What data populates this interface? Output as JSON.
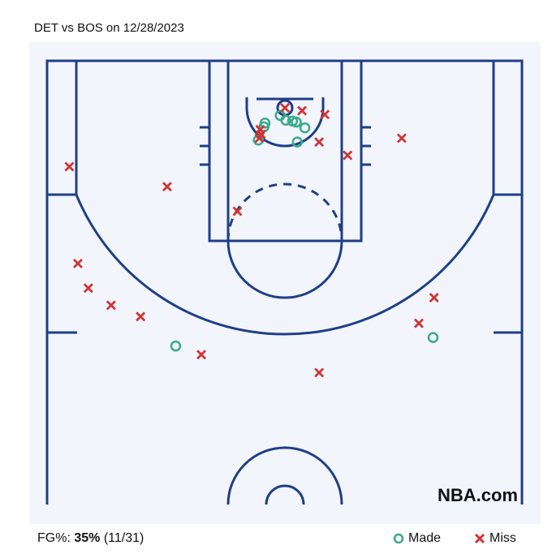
{
  "title": "DET vs BOS on 12/28/2023",
  "watermark": "NBA.com",
  "footer": {
    "fg_label": "FG%:",
    "fg_pct": "35%",
    "fg_count": "(11/31)"
  },
  "legend": [
    {
      "label": "Made",
      "marker": "circle-icon",
      "color": "#3aaa8a"
    },
    {
      "label": "Miss",
      "marker": "x-icon",
      "color": "#d03434"
    }
  ],
  "colors": {
    "court_bg": "#f2f5fc",
    "court_lines": "#1e3f87"
  },
  "chart_data": {
    "type": "scatter",
    "title": "DET vs BOS on 12/28/2023",
    "units": "feet from basket (x: lateral, y: toward half court)",
    "xlim": [
      -25,
      25
    ],
    "ylim": [
      -5,
      42
    ],
    "series": [
      {
        "name": "Made",
        "points": [
          [
            -2.1,
            1.6
          ],
          [
            -2.2,
            2.0
          ],
          [
            -2.8,
            3.4
          ],
          [
            -0.5,
            0.8
          ],
          [
            0.1,
            1.3
          ],
          [
            0.8,
            1.4
          ],
          [
            1.2,
            1.5
          ],
          [
            2.1,
            2.1
          ],
          [
            1.3,
            3.6
          ],
          [
            -11.5,
            25.1
          ],
          [
            15.6,
            24.2
          ]
        ]
      },
      {
        "name": "Miss",
        "points": [
          [
            0,
            0
          ],
          [
            1.8,
            0.3
          ],
          [
            4.2,
            0.7
          ],
          [
            -2.6,
            2.3
          ],
          [
            -2.5,
            2.8
          ],
          [
            -2.7,
            3.2
          ],
          [
            3.6,
            3.6
          ],
          [
            6.6,
            5.0
          ],
          [
            12.3,
            3.2
          ],
          [
            -22.7,
            6.2
          ],
          [
            -12.4,
            8.3
          ],
          [
            -5.0,
            10.9
          ],
          [
            -21.8,
            16.4
          ],
          [
            -20.7,
            19.0
          ],
          [
            -18.3,
            20.8
          ],
          [
            -15.2,
            22.0
          ],
          [
            -8.8,
            26.0
          ],
          [
            3.6,
            27.9
          ],
          [
            15.7,
            20.0
          ],
          [
            14.1,
            22.7
          ]
        ]
      }
    ]
  }
}
